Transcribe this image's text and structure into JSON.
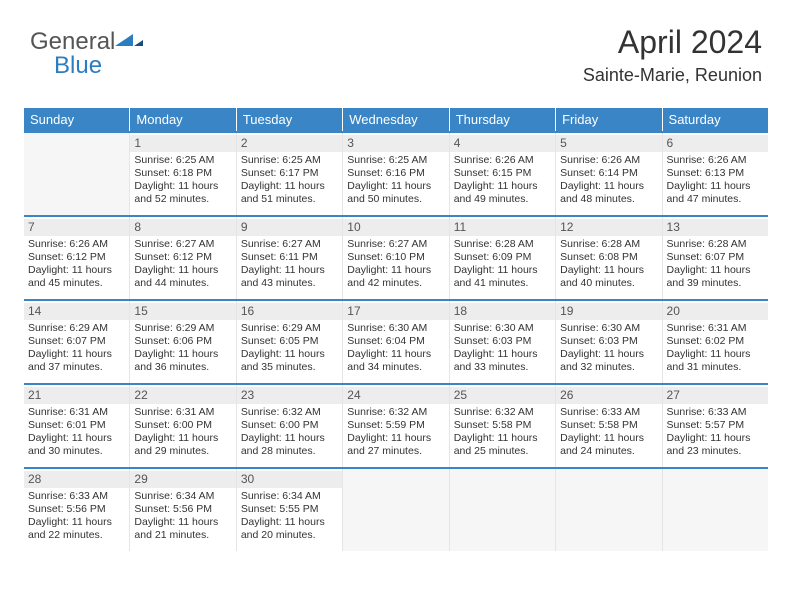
{
  "logo": {
    "text1": "General",
    "text2": "Blue"
  },
  "title": "April 2024",
  "location": "Sainte-Marie, Reunion",
  "colors": {
    "header_bg": "#3a85c6",
    "header_text": "#ffffff",
    "row_divider": "#3a85c6",
    "daynum_bg": "#ededed",
    "text": "#333333",
    "logo_blue": "#2d7cc0"
  },
  "days_of_week": [
    "Sunday",
    "Monday",
    "Tuesday",
    "Wednesday",
    "Thursday",
    "Friday",
    "Saturday"
  ],
  "grid": {
    "rows": 5,
    "cols": 7,
    "first_day_col": 1,
    "days_in_month": 30
  },
  "days": {
    "1": {
      "sunrise": "6:25 AM",
      "sunset": "6:18 PM",
      "daylight": "11 hours and 52 minutes."
    },
    "2": {
      "sunrise": "6:25 AM",
      "sunset": "6:17 PM",
      "daylight": "11 hours and 51 minutes."
    },
    "3": {
      "sunrise": "6:25 AM",
      "sunset": "6:16 PM",
      "daylight": "11 hours and 50 minutes."
    },
    "4": {
      "sunrise": "6:26 AM",
      "sunset": "6:15 PM",
      "daylight": "11 hours and 49 minutes."
    },
    "5": {
      "sunrise": "6:26 AM",
      "sunset": "6:14 PM",
      "daylight": "11 hours and 48 minutes."
    },
    "6": {
      "sunrise": "6:26 AM",
      "sunset": "6:13 PM",
      "daylight": "11 hours and 47 minutes."
    },
    "7": {
      "sunrise": "6:26 AM",
      "sunset": "6:12 PM",
      "daylight": "11 hours and 45 minutes."
    },
    "8": {
      "sunrise": "6:27 AM",
      "sunset": "6:12 PM",
      "daylight": "11 hours and 44 minutes."
    },
    "9": {
      "sunrise": "6:27 AM",
      "sunset": "6:11 PM",
      "daylight": "11 hours and 43 minutes."
    },
    "10": {
      "sunrise": "6:27 AM",
      "sunset": "6:10 PM",
      "daylight": "11 hours and 42 minutes."
    },
    "11": {
      "sunrise": "6:28 AM",
      "sunset": "6:09 PM",
      "daylight": "11 hours and 41 minutes."
    },
    "12": {
      "sunrise": "6:28 AM",
      "sunset": "6:08 PM",
      "daylight": "11 hours and 40 minutes."
    },
    "13": {
      "sunrise": "6:28 AM",
      "sunset": "6:07 PM",
      "daylight": "11 hours and 39 minutes."
    },
    "14": {
      "sunrise": "6:29 AM",
      "sunset": "6:07 PM",
      "daylight": "11 hours and 37 minutes."
    },
    "15": {
      "sunrise": "6:29 AM",
      "sunset": "6:06 PM",
      "daylight": "11 hours and 36 minutes."
    },
    "16": {
      "sunrise": "6:29 AM",
      "sunset": "6:05 PM",
      "daylight": "11 hours and 35 minutes."
    },
    "17": {
      "sunrise": "6:30 AM",
      "sunset": "6:04 PM",
      "daylight": "11 hours and 34 minutes."
    },
    "18": {
      "sunrise": "6:30 AM",
      "sunset": "6:03 PM",
      "daylight": "11 hours and 33 minutes."
    },
    "19": {
      "sunrise": "6:30 AM",
      "sunset": "6:03 PM",
      "daylight": "11 hours and 32 minutes."
    },
    "20": {
      "sunrise": "6:31 AM",
      "sunset": "6:02 PM",
      "daylight": "11 hours and 31 minutes."
    },
    "21": {
      "sunrise": "6:31 AM",
      "sunset": "6:01 PM",
      "daylight": "11 hours and 30 minutes."
    },
    "22": {
      "sunrise": "6:31 AM",
      "sunset": "6:00 PM",
      "daylight": "11 hours and 29 minutes."
    },
    "23": {
      "sunrise": "6:32 AM",
      "sunset": "6:00 PM",
      "daylight": "11 hours and 28 minutes."
    },
    "24": {
      "sunrise": "6:32 AM",
      "sunset": "5:59 PM",
      "daylight": "11 hours and 27 minutes."
    },
    "25": {
      "sunrise": "6:32 AM",
      "sunset": "5:58 PM",
      "daylight": "11 hours and 25 minutes."
    },
    "26": {
      "sunrise": "6:33 AM",
      "sunset": "5:58 PM",
      "daylight": "11 hours and 24 minutes."
    },
    "27": {
      "sunrise": "6:33 AM",
      "sunset": "5:57 PM",
      "daylight": "11 hours and 23 minutes."
    },
    "28": {
      "sunrise": "6:33 AM",
      "sunset": "5:56 PM",
      "daylight": "11 hours and 22 minutes."
    },
    "29": {
      "sunrise": "6:34 AM",
      "sunset": "5:56 PM",
      "daylight": "11 hours and 21 minutes."
    },
    "30": {
      "sunrise": "6:34 AM",
      "sunset": "5:55 PM",
      "daylight": "11 hours and 20 minutes."
    }
  },
  "labels": {
    "sunrise": "Sunrise:",
    "sunset": "Sunset:",
    "daylight": "Daylight:"
  }
}
